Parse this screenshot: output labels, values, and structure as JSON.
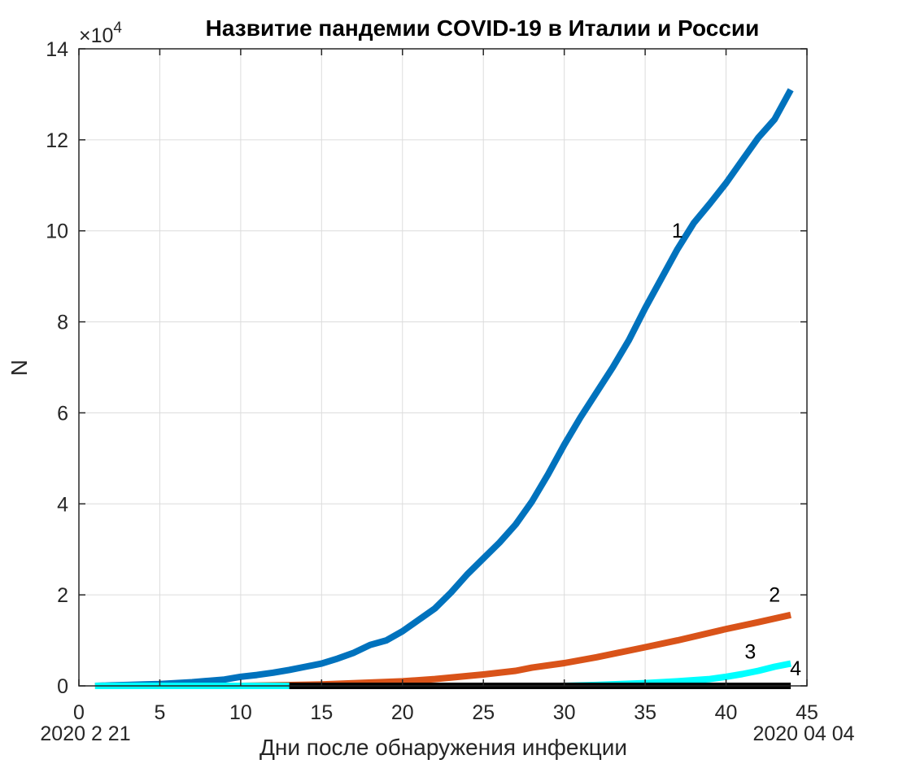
{
  "chart_data": {
    "type": "line",
    "title": "Назвитие пандемии COVID-19 в Италии и России",
    "xlabel": "Дни после обнаружения инфекции",
    "ylabel": "N",
    "y_multiplier": {
      "base": "×10",
      "exp": "4"
    },
    "x_start_date": "2020 2 21",
    "x_end_date": "2020 04 04",
    "xlim": [
      0,
      45
    ],
    "ylim": [
      0,
      140000
    ],
    "xticks": [
      0,
      5,
      10,
      15,
      20,
      25,
      30,
      35,
      40,
      45
    ],
    "yticks": [
      0,
      20000,
      40000,
      60000,
      80000,
      100000,
      120000,
      140000
    ],
    "ytick_labels": [
      "0",
      "2",
      "4",
      "6",
      "8",
      "10",
      "12",
      "14"
    ],
    "grid": true,
    "series": [
      {
        "label": "1",
        "color": "#0072BD",
        "x": [
          1,
          2,
          3,
          4,
          5,
          6,
          7,
          8,
          9,
          10,
          11,
          12,
          13,
          14,
          15,
          16,
          17,
          18,
          19,
          20,
          21,
          22,
          23,
          24,
          25,
          26,
          27,
          28,
          29,
          30,
          31,
          32,
          33,
          34,
          35,
          36,
          37,
          38,
          39,
          40,
          41,
          42,
          43,
          44
        ],
        "y": [
          0,
          100,
          200,
          300,
          400,
          600,
          800,
          1100,
          1400,
          2000,
          2400,
          2900,
          3500,
          4200,
          4900,
          6000,
          7300,
          9000,
          10000,
          12000,
          14500,
          17000,
          20500,
          24500,
          28000,
          31500,
          35500,
          40500,
          46500,
          53000,
          59000,
          64500,
          70000,
          76000,
          83000,
          89500,
          96000,
          101700,
          106000,
          110500,
          115500,
          120500,
          124500,
          131000
        ]
      },
      {
        "label": "2",
        "color": "#D95319",
        "x": [
          1,
          5,
          10,
          15,
          20,
          22,
          25,
          27,
          28,
          30,
          32,
          35,
          37,
          40,
          42,
          44
        ],
        "y": [
          0,
          0,
          0,
          300,
          1000,
          1500,
          2500,
          3300,
          4000,
          5000,
          6300,
          8500,
          10000,
          12500,
          14000,
          15600
        ]
      },
      {
        "label": "3",
        "color": "#00FFFF",
        "x": [
          1,
          25,
          30,
          32,
          35,
          37,
          39,
          40,
          41,
          42,
          43,
          44
        ],
        "y": [
          0,
          0,
          0,
          200,
          600,
          1000,
          1500,
          2000,
          2600,
          3300,
          4200,
          4900
        ]
      },
      {
        "label": "4",
        "color": "#000000",
        "x": [
          13,
          20,
          30,
          40,
          44
        ],
        "y": [
          0,
          0,
          0,
          0,
          0
        ]
      }
    ]
  }
}
